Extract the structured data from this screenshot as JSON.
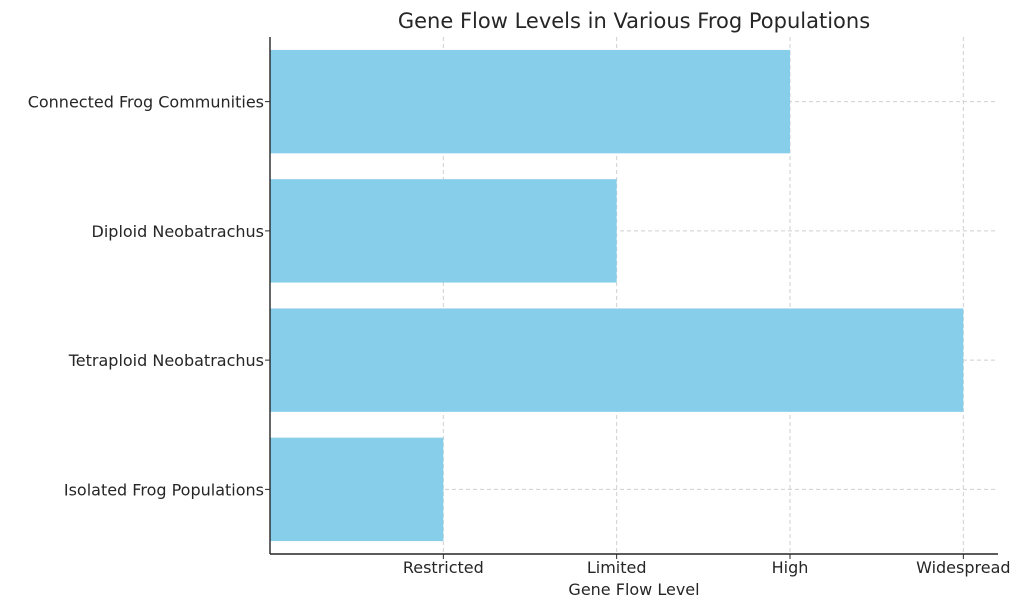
{
  "chart_data": {
    "type": "bar",
    "orientation": "horizontal",
    "title": "Gene Flow Levels in Various Frog Populations",
    "xlabel": "Gene Flow Level",
    "ylabel": "",
    "categories": [
      "Connected Frog Communities",
      "Diploid Neobatrachus",
      "Tetraploid Neobatrachus",
      "Isolated Frog Populations"
    ],
    "values": [
      3,
      2,
      4,
      1
    ],
    "x_ticks": [
      {
        "value": 1,
        "label": "Restricted"
      },
      {
        "value": 2,
        "label": "Limited"
      },
      {
        "value": 3,
        "label": "High"
      },
      {
        "value": 4,
        "label": "Widespread"
      }
    ],
    "xlim": [
      0,
      4.2
    ],
    "grid": true,
    "bar_color": "#87ceeb"
  }
}
